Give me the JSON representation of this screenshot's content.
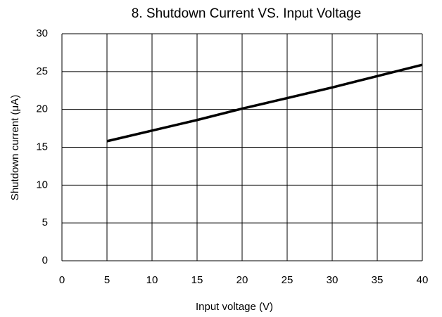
{
  "chart_data": {
    "type": "line",
    "title": "8. Shutdown Current VS. Input Voltage",
    "x_label": "Input voltage (V)",
    "y_label": "Shutdown current (μA)",
    "x": [
      5,
      10,
      15,
      20,
      25,
      30,
      35,
      40
    ],
    "values": [
      15.8,
      17.2,
      18.6,
      20.1,
      21.5,
      22.9,
      24.4,
      25.9
    ],
    "color": "#000000",
    "xlim": [
      0,
      40
    ],
    "xticks": [
      0,
      5,
      10,
      15,
      20,
      25,
      30,
      35,
      40
    ],
    "ylim": [
      0,
      30
    ],
    "yticks": [
      0,
      5,
      10,
      15,
      20,
      25,
      30
    ],
    "grid": true
  }
}
